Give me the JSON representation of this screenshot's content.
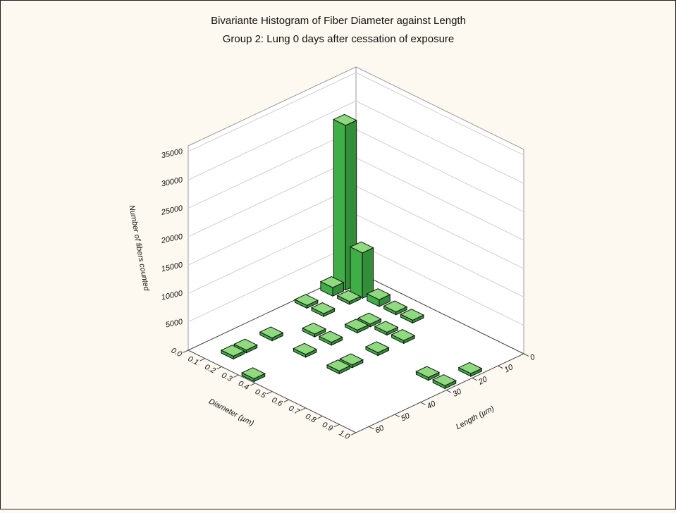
{
  "chart_data": {
    "type": "bar3d",
    "title": "Bivariante Histogram of Fiber Diameter against Length",
    "subtitle": "Group 2:  Lung 0 days after cessation of exposure",
    "x_label": "Diameter (µm)",
    "y_label": "Length (µm)",
    "z_label": "Number of fibers counted",
    "xlim": [
      0,
      1
    ],
    "xticks": [
      {
        "value": 0,
        "label": "0.0"
      },
      0.1,
      0.2,
      0.3,
      0.4,
      0.5,
      0.6,
      0.7,
      0.8,
      0.9,
      {
        "value": 1,
        "label": "1.0"
      }
    ],
    "ylim": [
      0,
      65
    ],
    "yticks": [
      0,
      10,
      20,
      30,
      40,
      50,
      60
    ],
    "zlim": [
      0,
      36000
    ],
    "zticks": [
      5000,
      10000,
      15000,
      20000,
      25000,
      30000,
      35000
    ],
    "x_bin_width": 0.1,
    "y_bin_width": 5,
    "x": [
      0.05,
      0.15,
      0.05,
      0.15,
      0.25,
      0.35,
      0.45,
      0.05,
      0.15,
      0.35,
      0.35,
      0.45,
      0.15,
      0.25,
      0.35,
      0.15,
      0.15,
      0.35,
      0.35,
      0.55,
      0.55,
      0.55,
      0.55,
      0.85,
      0.95,
      0.95
    ],
    "y": [
      7.5,
      7.5,
      12.5,
      12.5,
      7.5,
      7.5,
      7.5,
      22.5,
      22.5,
      22.5,
      17.5,
      17.5,
      42.5,
      32.5,
      32.5,
      52.5,
      57.5,
      62.5,
      42.5,
      37.5,
      42.5,
      27.5,
      17.5,
      27.5,
      27.5,
      17.5
    ],
    "values": [
      29000,
      8000,
      1500,
      500,
      1200,
      500,
      500,
      500,
      500,
      500,
      500,
      500,
      500,
      500,
      500,
      500,
      500,
      500,
      500,
      500,
      500,
      500,
      500,
      500,
      500,
      500
    ],
    "color": "#3fae46",
    "top_color": "#8fd97f",
    "grid": true
  }
}
